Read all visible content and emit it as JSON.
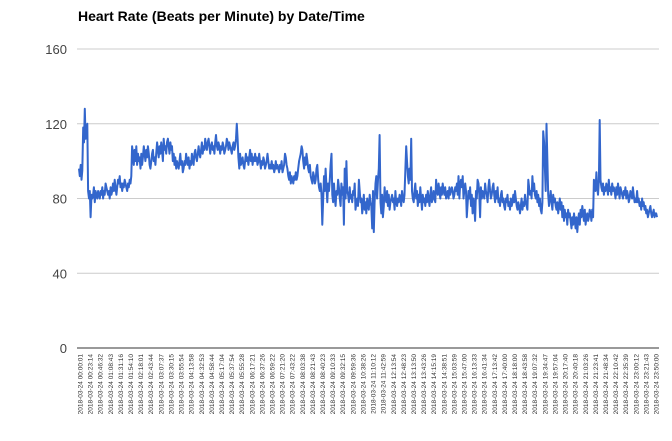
{
  "chart_data": {
    "type": "line",
    "title": "Heart Rate (Beats per Minute) by Date/Time",
    "xlabel": "",
    "ylabel": "",
    "ylim": [
      0,
      160
    ],
    "yticks": [
      0,
      40,
      80,
      120,
      160
    ],
    "grid": true,
    "legend": "none",
    "series_color": "#3366cc",
    "x_tick_labels": [
      "2018-03-24 00:00:01",
      "2018-03-24 00:23:14",
      "2018-03-24 00:46:32",
      "2018-03-24 01:08:43",
      "2018-03-24 01:31:16",
      "2018-03-24 01:54:10",
      "2018-03-24 02:18:01",
      "2018-03-24 02:43:44",
      "2018-03-24 03:07:37",
      "2018-03-24 03:30:15",
      "2018-03-24 03:55:54",
      "2018-03-24 04:13:58",
      "2018-03-24 04:32:53",
      "2018-03-24 04:58:44",
      "2018-03-24 05:17:04",
      "2018-03-24 05:37:54",
      "2018-03-24 05:55:28",
      "2018-03-24 06:17:21",
      "2018-03-24 06:37:26",
      "2018-03-24 06:59:22",
      "2018-03-24 07:21:20",
      "2018-03-24 07:43:22",
      "2018-03-24 08:03:38",
      "2018-03-24 08:21:43",
      "2018-03-24 08:40:23",
      "2018-03-24 09:10:33",
      "2018-03-24 09:32:15",
      "2018-03-24 09:59:36",
      "2018-03-24 10:38:26",
      "2018-03-24 11:10:12",
      "2018-03-24 11:42:59",
      "2018-03-24 12:13:54",
      "2018-03-24 12:48:23",
      "2018-03-24 13:13:50",
      "2018-03-24 13:43:26",
      "2018-03-24 14:15:19",
      "2018-03-24 14:38:51",
      "2018-03-24 15:03:59",
      "2018-03-24 15:47:00",
      "2018-03-24 16:13:33",
      "2018-03-24 16:41:34",
      "2018-03-24 17:13:42",
      "2018-03-24 17:40:00",
      "2018-03-24 18:18:00",
      "2018-03-24 18:43:58",
      "2018-03-24 19:07:32",
      "2018-03-24 19:34:47",
      "2018-03-24 19:57:04",
      "2018-03-24 20:17:40",
      "2018-03-24 20:40:18",
      "2018-03-24 21:03:26",
      "2018-03-24 21:23:41",
      "2018-03-24 21:48:34",
      "2018-03-24 22:10:42",
      "2018-03-24 22:35:39",
      "2018-03-24 23:00:12",
      "2018-03-24 23:21:43",
      "2018-03-24 23:50:00"
    ],
    "series": [
      {
        "values": [
          96,
          92,
          98,
          90,
          95,
          118,
          110,
          128,
          112,
          116,
          120,
          84,
          80,
          84,
          70,
          82,
          80,
          82,
          86,
          78,
          84,
          82,
          80,
          84,
          82,
          80,
          84,
          82,
          86,
          80,
          84,
          82,
          88,
          86,
          84,
          82,
          84,
          80,
          86,
          82,
          84,
          88,
          84,
          90,
          86,
          82,
          86,
          90,
          88,
          92,
          86,
          88,
          84,
          88,
          86,
          90,
          88,
          86,
          84,
          88,
          86,
          90,
          88,
          92,
          108,
          104,
          98,
          106,
          100,
          108,
          98,
          104,
          100,
          102,
          96,
          104,
          98,
          102,
          108,
          104,
          100,
          106,
          102,
          108,
          104,
          98,
          96,
          100,
          104,
          106,
          100,
          102,
          98,
          104,
          110,
          106,
          102,
          108,
          104,
          110,
          106,
          100,
          112,
          106,
          108,
          104,
          110,
          112,
          108,
          104,
          110,
          106,
          108,
          100,
          104,
          98,
          102,
          96,
          100,
          98,
          96,
          100,
          104,
          98,
          100,
          94,
          96,
          100,
          98,
          104,
          100,
          98,
          102,
          96,
          100,
          98,
          104,
          100,
          98,
          104,
          106,
          102,
          100,
          104,
          108,
          104,
          102,
          106,
          110,
          104,
          108,
          106,
          112,
          108,
          106,
          110,
          112,
          108,
          104,
          108,
          110,
          106,
          108,
          104,
          110,
          114,
          108,
          106,
          110,
          108,
          104,
          108,
          106,
          110,
          108,
          104,
          106,
          108,
          112,
          110,
          106,
          110,
          108,
          106,
          104,
          108,
          110,
          106,
          108,
          112,
          120,
          112,
          102,
          96,
          104,
          98,
          100,
          102,
          98,
          96,
          100,
          104,
          100,
          102,
          98,
          102,
          106,
          100,
          104,
          98,
          102,
          100,
          104,
          100,
          102,
          98,
          100,
          104,
          100,
          96,
          100,
          98,
          102,
          100,
          96,
          98,
          100,
          104,
          100,
          96,
          98,
          96,
          100,
          96,
          98,
          94,
          96,
          100,
          96,
          98,
          96,
          94,
          98,
          96,
          100,
          94,
          96,
          98,
          104,
          102,
          98,
          96,
          92,
          90,
          94,
          88,
          92,
          90,
          88,
          92,
          90,
          94,
          90,
          92,
          96,
          100,
          102,
          104,
          108,
          106,
          100,
          96,
          102,
          98,
          104,
          100,
          96,
          94,
          98,
          92,
          90,
          88,
          94,
          92,
          88,
          90,
          96,
          98,
          90,
          86,
          84,
          88,
          82,
          66,
          80,
          92,
          84,
          96,
          86,
          78,
          88,
          84,
          90,
          98,
          104,
          82,
          78,
          88,
          80,
          76,
          84,
          82,
          90,
          86,
          80,
          76,
          88,
          82,
          86,
          66,
          96,
          80,
          100,
          84,
          82,
          78,
          86,
          80,
          82,
          78,
          84,
          82,
          88,
          74,
          78,
          80,
          76,
          90,
          84,
          78,
          80,
          72,
          76,
          82,
          74,
          78,
          72,
          80,
          76,
          74,
          82,
          78,
          76,
          64,
          84,
          62,
          78,
          88,
          92,
          80,
          90,
          96,
          114,
          78,
          72,
          82,
          70,
          76,
          86,
          80,
          78,
          84,
          76,
          82,
          74,
          78,
          80,
          82,
          78,
          80,
          74,
          84,
          78,
          76,
          80,
          78,
          82,
          80,
          76,
          84,
          80,
          78,
          82,
          96,
          108,
          100,
          92,
          88,
          96,
          90,
          112,
          84,
          80,
          78,
          84,
          88,
          80,
          84,
          76,
          82,
          78,
          86,
          80,
          74,
          82,
          78,
          80,
          76,
          82,
          78,
          84,
          80,
          76,
          82,
          86,
          78,
          80,
          84,
          80,
          78,
          90,
          84,
          82,
          88,
          84,
          80,
          86,
          82,
          88,
          84,
          82,
          86,
          80,
          82,
          84,
          80,
          86,
          82,
          84,
          86,
          84,
          80,
          82,
          86,
          84,
          88,
          82,
          92,
          80,
          88,
          90,
          86,
          92,
          80,
          84,
          88,
          84,
          70,
          78,
          84,
          80,
          86,
          76,
          82,
          72,
          80,
          76,
          68,
          84,
          80,
          90,
          88,
          82,
          70,
          86,
          80,
          84,
          82,
          80,
          88,
          84,
          82,
          78,
          86,
          90,
          84,
          80,
          82,
          86,
          88,
          82,
          78,
          84,
          80,
          86,
          78,
          80,
          76,
          82,
          84,
          78,
          80,
          76,
          74,
          80,
          78,
          82,
          76,
          78,
          74,
          80,
          76,
          78,
          82,
          78,
          84,
          80,
          76,
          74,
          78,
          76,
          72,
          76,
          80,
          74,
          78,
          76,
          82,
          78,
          76,
          74,
          90,
          86,
          82,
          84,
          80,
          92,
          84,
          88,
          82,
          80,
          84,
          78,
          82,
          76,
          80,
          74,
          72,
          78,
          116,
          110,
          96,
          84,
          120,
          100,
          82,
          76,
          80,
          84,
          78,
          74,
          82,
          78,
          80,
          76,
          74,
          78,
          72,
          76,
          80,
          74,
          78,
          70,
          76,
          68,
          74,
          70,
          72,
          66,
          74,
          70,
          72,
          68,
          64,
          70,
          66,
          72,
          68,
          64,
          70,
          62,
          68,
          72,
          66,
          74,
          70,
          76,
          72,
          68,
          74,
          66,
          70,
          72,
          68,
          70,
          74,
          72,
          68,
          74,
          70,
          90,
          88,
          84,
          94,
          86,
          82,
          90,
          122,
          90,
          86,
          84,
          88,
          82,
          86,
          84,
          88,
          86,
          82,
          90,
          84,
          86,
          82,
          88,
          84,
          86,
          84,
          80,
          86,
          82,
          88,
          84,
          80,
          86,
          84,
          82,
          80,
          84,
          82,
          86,
          80,
          84,
          82,
          78,
          80,
          84,
          82,
          80,
          86,
          82,
          78,
          80,
          78,
          84,
          78,
          80,
          76,
          78,
          74,
          80,
          76,
          78,
          74,
          76,
          72,
          74,
          70,
          72,
          74,
          76,
          72,
          70,
          72,
          74,
          70,
          72,
          72,
          70
        ]
      }
    ]
  }
}
